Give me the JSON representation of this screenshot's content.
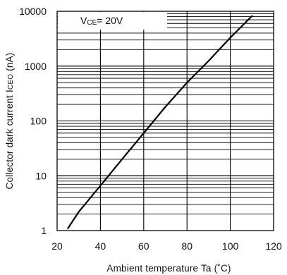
{
  "chart_data": {
    "type": "line",
    "title": "",
    "xlabel": "Ambient temperature Ta (˚C)",
    "ylabel": "Collector dark current ICEO (nA)",
    "ylabel_parts": {
      "pre": "Collector dark current I",
      "sub": "CEO",
      "post": " (nA)"
    },
    "xlim": [
      20,
      120
    ],
    "ylim": [
      1,
      10000
    ],
    "yscale": "log",
    "grid": true,
    "x_ticks": [
      "20",
      "40",
      "60",
      "80",
      "100",
      "120"
    ],
    "y_ticks": [
      "1",
      "10",
      "100",
      "1000",
      "10000"
    ],
    "annotation": {
      "pre": "V",
      "sub": "CE",
      "post": "= 20V"
    },
    "series": [
      {
        "x": [
          25,
          30,
          40,
          50,
          60,
          70,
          80,
          90,
          100,
          110
        ],
        "y": [
          1.1,
          2.2,
          6.6,
          20,
          60,
          180,
          500,
          1250,
          3300,
          8200
        ]
      }
    ]
  }
}
